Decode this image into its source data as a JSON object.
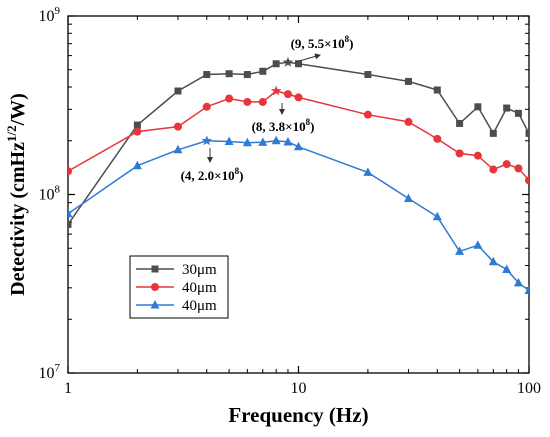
{
  "chart_data": {
    "type": "line",
    "xlabel": "Frequency (Hz)",
    "ylabel_main": "Detectivity (cmHz",
    "ylabel_sup": "1/2",
    "ylabel_tail": "/W)",
    "xscale": "log",
    "yscale": "log",
    "xlim": [
      1,
      100
    ],
    "ylim": [
      10000000,
      1000000000
    ],
    "x_ticks": [
      {
        "value": 1,
        "label": "1"
      },
      {
        "value": 10,
        "label": "10"
      },
      {
        "value": 100,
        "label": "100"
      }
    ],
    "y_ticks": [
      {
        "value": 10000000,
        "base": "10",
        "exp": "7"
      },
      {
        "value": 100000000,
        "base": "10",
        "exp": "8"
      },
      {
        "value": 1000000000,
        "base": "10",
        "exp": "9"
      }
    ],
    "grid": false,
    "legend_position": "lower-left",
    "series": [
      {
        "name": "30μm",
        "color": "#4d4d4d",
        "marker": "square",
        "points": [
          [
            1,
            68000000
          ],
          [
            2,
            245000000
          ],
          [
            3,
            380000000
          ],
          [
            4,
            470000000
          ],
          [
            5,
            475000000
          ],
          [
            6,
            470000000
          ],
          [
            7,
            490000000
          ],
          [
            8,
            540000000
          ],
          [
            9,
            550000000
          ],
          [
            10,
            540000000
          ],
          [
            20,
            470000000
          ],
          [
            30,
            430000000
          ],
          [
            40,
            385000000
          ],
          [
            50,
            250000000
          ],
          [
            60,
            310000000
          ],
          [
            70,
            220000000
          ],
          [
            80,
            305000000
          ],
          [
            90,
            285000000
          ],
          [
            100,
            220000000
          ]
        ]
      },
      {
        "name": "40μm",
        "color": "#e8353a",
        "marker": "circle",
        "points": [
          [
            1,
            135000000
          ],
          [
            2,
            225000000
          ],
          [
            3,
            240000000
          ],
          [
            4,
            310000000
          ],
          [
            5,
            345000000
          ],
          [
            6,
            330000000
          ],
          [
            7,
            330000000
          ],
          [
            8,
            380000000
          ],
          [
            9,
            365000000
          ],
          [
            10,
            350000000
          ],
          [
            20,
            280000000
          ],
          [
            30,
            255000000
          ],
          [
            40,
            205000000
          ],
          [
            50,
            170000000
          ],
          [
            60,
            165000000
          ],
          [
            70,
            138000000
          ],
          [
            80,
            148000000
          ],
          [
            90,
            140000000
          ],
          [
            100,
            120000000
          ]
        ]
      },
      {
        "name": "40μm",
        "color": "#2f7bd4",
        "marker": "triangle",
        "points": [
          [
            1,
            78000000
          ],
          [
            2,
            145000000
          ],
          [
            3,
            178000000
          ],
          [
            4,
            200000000
          ],
          [
            5,
            198000000
          ],
          [
            6,
            195000000
          ],
          [
            7,
            196000000
          ],
          [
            8,
            200000000
          ],
          [
            9,
            197000000
          ],
          [
            10,
            185000000
          ],
          [
            20,
            133000000
          ],
          [
            30,
            95000000
          ],
          [
            40,
            75000000
          ],
          [
            50,
            48000000
          ],
          [
            60,
            52000000
          ],
          [
            70,
            42000000
          ],
          [
            80,
            38000000
          ],
          [
            90,
            32000000
          ],
          [
            100,
            29000000
          ]
        ]
      }
    ],
    "annotations": [
      {
        "text": "(9, 5.5×10",
        "sup": "8",
        "tail": ")",
        "x": 9,
        "y": 550000000
      },
      {
        "text": "(8, 3.8×10",
        "sup": "8",
        "tail": ")",
        "x": 8,
        "y": 380000000
      },
      {
        "text": "(4, 2.0×10",
        "sup": "8",
        "tail": ")",
        "x": 4,
        "y": 200000000
      }
    ]
  }
}
